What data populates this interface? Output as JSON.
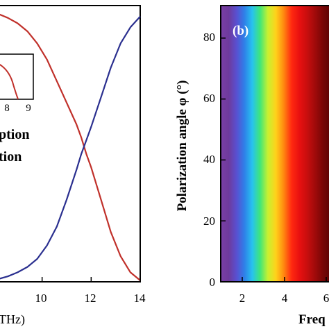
{
  "chart_data": [
    {
      "panel": "left",
      "type": "line",
      "xlabel_visible": "THz)",
      "xlim": [
        8,
        14
      ],
      "x_ticks": [
        "10",
        "12",
        "14"
      ],
      "legend_visible": [
        "ption",
        "tion"
      ],
      "inset": {
        "x_ticks": [
          "8",
          "9"
        ],
        "xlim": [
          7.4,
          9.0
        ]
      },
      "series": [
        {
          "color": "#c0302a",
          "points": [
            [
              8.2,
              0.99
            ],
            [
              8.6,
              0.975
            ],
            [
              9.0,
              0.955
            ],
            [
              9.4,
              0.925
            ],
            [
              9.8,
              0.88
            ],
            [
              10.2,
              0.82
            ],
            [
              10.6,
              0.74
            ],
            [
              11.0,
              0.66
            ],
            [
              11.4,
              0.58
            ],
            [
              11.6,
              0.53
            ],
            [
              11.8,
              0.47
            ],
            [
              12.0,
              0.42
            ],
            [
              12.4,
              0.3
            ],
            [
              12.8,
              0.18
            ],
            [
              13.2,
              0.09
            ],
            [
              13.6,
              0.03
            ],
            [
              14.0,
              0.0
            ]
          ]
        },
        {
          "color": "#2a2f8f",
          "points": [
            [
              8.2,
              0.005
            ],
            [
              8.6,
              0.015
            ],
            [
              9.0,
              0.03
            ],
            [
              9.4,
              0.05
            ],
            [
              9.8,
              0.08
            ],
            [
              10.2,
              0.13
            ],
            [
              10.6,
              0.2
            ],
            [
              11.0,
              0.3
            ],
            [
              11.4,
              0.41
            ],
            [
              11.6,
              0.47
            ],
            [
              11.8,
              0.52
            ],
            [
              12.0,
              0.57
            ],
            [
              12.4,
              0.68
            ],
            [
              12.8,
              0.79
            ],
            [
              13.2,
              0.88
            ],
            [
              13.6,
              0.94
            ],
            [
              14.0,
              0.98
            ]
          ]
        }
      ]
    },
    {
      "panel": "right",
      "type": "heatmap",
      "panel_label": "(b)",
      "ylabel": "Polarization angle φ (°)",
      "xlabel_visible": "Freq",
      "ylim": [
        0,
        90
      ],
      "y_ticks": [
        "0",
        "20",
        "40",
        "60",
        "80"
      ],
      "x_ticks": [
        "2",
        "4",
        "6"
      ],
      "bands": [
        {
          "color": "#7a3fa6"
        },
        {
          "color": "#6e3a9c"
        },
        {
          "color": "#5a4fd0"
        },
        {
          "color": "#2f7fe8"
        },
        {
          "color": "#27c2f0"
        },
        {
          "color": "#3ee67a"
        },
        {
          "color": "#c8f030"
        },
        {
          "color": "#ffd21a"
        },
        {
          "color": "#ff8a10"
        },
        {
          "color": "#ff2a10"
        },
        {
          "color": "#e81010"
        },
        {
          "color": "#c80e0e"
        },
        {
          "color": "#a00a0a"
        },
        {
          "color": "#780606"
        },
        {
          "color": "#5a0404"
        },
        {
          "color": "#4a0202"
        }
      ]
    }
  ]
}
